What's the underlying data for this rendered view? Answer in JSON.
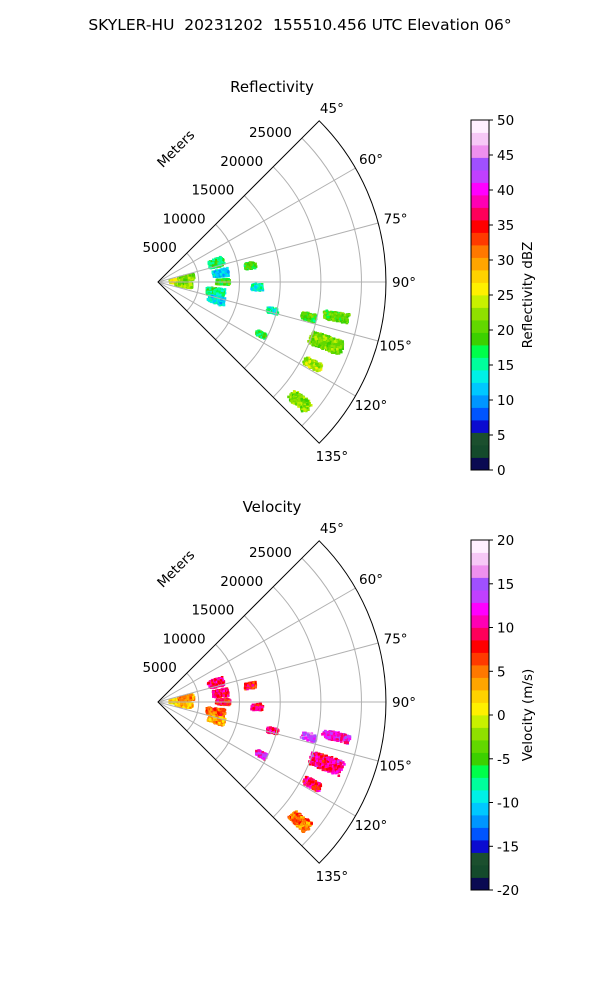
{
  "suptitle": "SKYLER-HU  20231202  155510.456 UTC Elevation 06°",
  "colors": {
    "grid": "#b0b0b0",
    "frame": "#000000"
  },
  "chart_data": [
    {
      "type": "heatmap",
      "projection": "polar-sector",
      "title": "Reflectivity",
      "radial_label": "Meters",
      "r_ticks": [
        "5000",
        "10000",
        "15000",
        "20000",
        "25000"
      ],
      "rlim": [
        0,
        28000
      ],
      "theta_ticks": [
        "45°",
        "60°",
        "75°",
        "90°",
        "105°",
        "120°",
        "135°"
      ],
      "theta_range_deg": [
        45,
        135
      ],
      "grid": true,
      "colorbar": {
        "label": "Reflectivity dBZ",
        "ticks": [
          "0",
          "5",
          "10",
          "15",
          "20",
          "25",
          "30",
          "35",
          "40",
          "45",
          "50"
        ],
        "range": [
          0,
          50
        ],
        "cmap": [
          "#0a0a52",
          "#144a2c",
          "#1b4f2e",
          "#0b0bd0",
          "#0055ff",
          "#0096ff",
          "#00c8ff",
          "#00f0e6",
          "#00ff9c",
          "#00ff4a",
          "#3cd000",
          "#62d800",
          "#90e000",
          "#c8f000",
          "#fff000",
          "#ffd200",
          "#ffa500",
          "#ff7800",
          "#ff3a00",
          "#ff0000",
          "#ff005a",
          "#ff00b4",
          "#ff00ff",
          "#c040ff",
          "#a050ff",
          "#ee90ee",
          "#f6c8f6",
          "#fff0ff"
        ]
      },
      "echo_clusters": [
        {
          "bearing_deg": 88,
          "range_m": 2600,
          "width_deg": 14,
          "depth_m": 2400,
          "value": 26
        },
        {
          "bearing_deg": 82,
          "range_m": 3500,
          "width_deg": 10,
          "depth_m": 2000,
          "value": 21
        },
        {
          "bearing_deg": 96,
          "range_m": 3200,
          "width_deg": 10,
          "depth_m": 2200,
          "value": 22
        },
        {
          "bearing_deg": 72,
          "range_m": 7500,
          "width_deg": 8,
          "depth_m": 2000,
          "value": 17
        },
        {
          "bearing_deg": 82,
          "range_m": 7800,
          "width_deg": 7,
          "depth_m": 2000,
          "value": 12
        },
        {
          "bearing_deg": 90,
          "range_m": 8000,
          "width_deg": 5,
          "depth_m": 1800,
          "value": 19
        },
        {
          "bearing_deg": 100,
          "range_m": 7200,
          "width_deg": 8,
          "depth_m": 2400,
          "value": 16
        },
        {
          "bearing_deg": 107,
          "range_m": 7500,
          "width_deg": 7,
          "depth_m": 2200,
          "value": 13
        },
        {
          "bearing_deg": 80,
          "range_m": 11500,
          "width_deg": 4,
          "depth_m": 1500,
          "value": 18
        },
        {
          "bearing_deg": 93,
          "range_m": 12200,
          "width_deg": 4,
          "depth_m": 1500,
          "value": 14
        },
        {
          "bearing_deg": 104,
          "range_m": 14500,
          "width_deg": 3,
          "depth_m": 1500,
          "value": 15
        },
        {
          "bearing_deg": 117,
          "range_m": 14200,
          "width_deg": 3,
          "depth_m": 1500,
          "value": 18
        },
        {
          "bearing_deg": 103,
          "range_m": 19000,
          "width_deg": 3,
          "depth_m": 2000,
          "value": 19
        },
        {
          "bearing_deg": 101,
          "range_m": 22300,
          "width_deg": 3,
          "depth_m": 3500,
          "value": 20
        },
        {
          "bearing_deg": 110,
          "range_m": 22000,
          "width_deg": 5,
          "depth_m": 4500,
          "value": 21
        },
        {
          "bearing_deg": 118,
          "range_m": 21500,
          "width_deg": 3,
          "depth_m": 2500,
          "value": 23
        },
        {
          "bearing_deg": 130,
          "range_m": 22800,
          "width_deg": 4,
          "depth_m": 3000,
          "value": 22
        }
      ]
    },
    {
      "type": "heatmap",
      "projection": "polar-sector",
      "title": "Velocity",
      "radial_label": "Meters",
      "r_ticks": [
        "5000",
        "10000",
        "15000",
        "20000",
        "25000"
      ],
      "rlim": [
        0,
        28000
      ],
      "theta_ticks": [
        "45°",
        "60°",
        "75°",
        "90°",
        "105°",
        "120°",
        "135°"
      ],
      "theta_range_deg": [
        45,
        135
      ],
      "grid": true,
      "colorbar": {
        "label": "Velocity (m/s)",
        "ticks": [
          "-20",
          "-15",
          "-10",
          "-5",
          "0",
          "5",
          "10",
          "15",
          "20"
        ],
        "range": [
          -20,
          20
        ],
        "cmap": [
          "#0a0a52",
          "#144a2c",
          "#1b4f2e",
          "#0b0bd0",
          "#0055ff",
          "#0096ff",
          "#00c8ff",
          "#00f0e6",
          "#00ff9c",
          "#00ff4a",
          "#3cd000",
          "#62d800",
          "#90e000",
          "#c8f000",
          "#fff000",
          "#ffd200",
          "#ffa500",
          "#ff7800",
          "#ff3a00",
          "#ff0000",
          "#ff005a",
          "#ff00b4",
          "#ff00ff",
          "#c040ff",
          "#a050ff",
          "#ee90ee",
          "#f6c8f6",
          "#fff0ff"
        ]
      },
      "echo_clusters": [
        {
          "bearing_deg": 88,
          "range_m": 2600,
          "width_deg": 14,
          "depth_m": 2400,
          "value": 1
        },
        {
          "bearing_deg": 82,
          "range_m": 3500,
          "width_deg": 10,
          "depth_m": 2000,
          "value": 4
        },
        {
          "bearing_deg": 96,
          "range_m": 3200,
          "width_deg": 10,
          "depth_m": 2200,
          "value": 3
        },
        {
          "bearing_deg": 72,
          "range_m": 7500,
          "width_deg": 8,
          "depth_m": 2000,
          "value": 10
        },
        {
          "bearing_deg": 82,
          "range_m": 7800,
          "width_deg": 7,
          "depth_m": 2000,
          "value": 9
        },
        {
          "bearing_deg": 90,
          "range_m": 8000,
          "width_deg": 5,
          "depth_m": 1800,
          "value": 8
        },
        {
          "bearing_deg": 100,
          "range_m": 7200,
          "width_deg": 8,
          "depth_m": 2400,
          "value": 6
        },
        {
          "bearing_deg": 107,
          "range_m": 7500,
          "width_deg": 7,
          "depth_m": 2200,
          "value": 3
        },
        {
          "bearing_deg": 80,
          "range_m": 11500,
          "width_deg": 4,
          "depth_m": 1500,
          "value": 8
        },
        {
          "bearing_deg": 93,
          "range_m": 12200,
          "width_deg": 4,
          "depth_m": 1500,
          "value": 9
        },
        {
          "bearing_deg": 104,
          "range_m": 14500,
          "width_deg": 3,
          "depth_m": 1500,
          "value": 10
        },
        {
          "bearing_deg": 117,
          "range_m": 14200,
          "width_deg": 3,
          "depth_m": 1500,
          "value": 12
        },
        {
          "bearing_deg": 103,
          "range_m": 19000,
          "width_deg": 3,
          "depth_m": 2000,
          "value": 14
        },
        {
          "bearing_deg": 101,
          "range_m": 22300,
          "width_deg": 3,
          "depth_m": 3500,
          "value": 12
        },
        {
          "bearing_deg": 110,
          "range_m": 22000,
          "width_deg": 5,
          "depth_m": 4500,
          "value": 10
        },
        {
          "bearing_deg": 118,
          "range_m": 21500,
          "width_deg": 3,
          "depth_m": 2500,
          "value": 9
        },
        {
          "bearing_deg": 130,
          "range_m": 22800,
          "width_deg": 4,
          "depth_m": 3000,
          "value": 5
        }
      ]
    }
  ]
}
